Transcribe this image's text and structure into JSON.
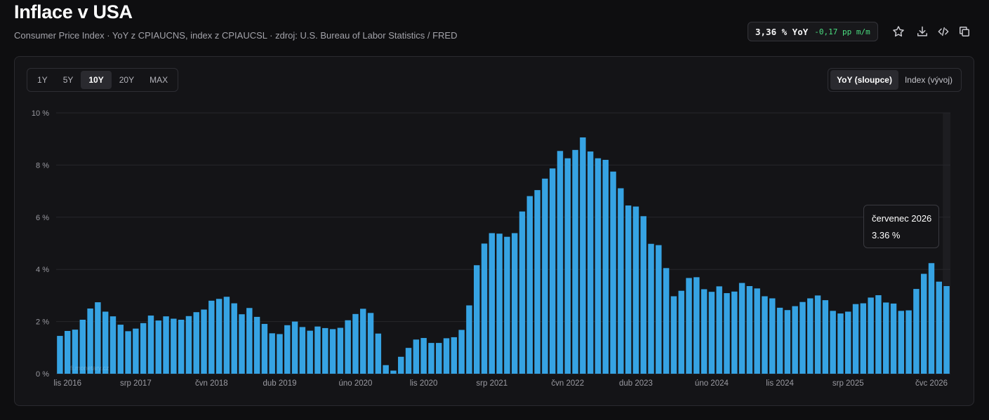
{
  "header": {
    "title": "Inflace v USA",
    "subtitle": "Consumer Price Index · YoY z CPIAUCNS, index z CPIAUCSL · zdroj: U.S. Bureau of Labor Statistics / FRED"
  },
  "stat": {
    "value": "3,36 % YoY",
    "change": "-0,17 pp m/m",
    "change_color": "#4ade80"
  },
  "toolbar": {
    "icons": [
      "star-icon",
      "download-icon",
      "code-icon",
      "copy-icon"
    ]
  },
  "range_buttons": [
    "1Y",
    "5Y",
    "10Y",
    "20Y",
    "MAX"
  ],
  "range_selected": "10Y",
  "mode_buttons": [
    "YoY (sloupce)",
    "Index (vývoj)"
  ],
  "mode_selected": "YoY (sloupce)",
  "watermark": "fi.monetary.cz",
  "tooltip": {
    "title": "červenec 2026",
    "value": "3.36 %"
  },
  "colors": {
    "bar": "#36a3e3",
    "grid": "#26262b",
    "axis_text": "#9a9aa1",
    "highlight_band": "#1d1d21"
  },
  "chart_data": {
    "type": "bar",
    "ylabel": "",
    "xlabel": "",
    "ylim": [
      0,
      10
    ],
    "y_ticks": [
      0,
      2,
      4,
      6,
      8,
      10
    ],
    "y_tick_labels": [
      "0 %",
      "2 %",
      "4 %",
      "6 %",
      "8 %",
      "10 %"
    ],
    "x_tick_labels": [
      {
        "label": "lis 2016",
        "index": 1
      },
      {
        "label": "srp 2017",
        "index": 10
      },
      {
        "label": "čvn 2018",
        "index": 20
      },
      {
        "label": "dub 2019",
        "index": 29
      },
      {
        "label": "úno 2020",
        "index": 39
      },
      {
        "label": "lis 2020",
        "index": 48
      },
      {
        "label": "srp 2021",
        "index": 57
      },
      {
        "label": "čvn 2022",
        "index": 67
      },
      {
        "label": "dub 2023",
        "index": 76
      },
      {
        "label": "úno 2024",
        "index": 86
      },
      {
        "label": "lis 2024",
        "index": 95
      },
      {
        "label": "srp 2025",
        "index": 104
      },
      {
        "label": "čvc 2026",
        "index": 115
      }
    ],
    "series": [
      {
        "values": [
          1.45,
          1.64,
          1.69,
          2.07,
          2.5,
          2.74,
          2.38,
          2.2,
          1.88,
          1.63,
          1.73,
          1.94,
          2.23,
          2.04,
          2.2,
          2.11,
          2.07,
          2.21,
          2.36,
          2.46,
          2.8,
          2.87,
          2.95,
          2.7,
          2.28,
          2.52,
          2.18,
          1.91,
          1.55,
          1.52,
          1.86,
          2.0,
          1.79,
          1.65,
          1.81,
          1.75,
          1.71,
          1.76,
          2.05,
          2.29,
          2.49,
          2.33,
          1.54,
          0.33,
          0.12,
          0.65,
          0.99,
          1.31,
          1.37,
          1.18,
          1.18,
          1.36,
          1.4,
          1.68,
          2.62,
          4.16,
          4.99,
          5.39,
          5.37,
          5.25,
          5.39,
          6.22,
          6.81,
          7.04,
          7.48,
          7.87,
          8.54,
          8.26,
          8.58,
          9.06,
          8.52,
          8.26,
          8.2,
          7.75,
          7.11,
          6.45,
          6.41,
          6.04,
          4.98,
          4.93,
          4.05,
          2.97,
          3.18,
          3.67,
          3.7,
          3.24,
          3.14,
          3.35,
          3.09,
          3.15,
          3.48,
          3.36,
          3.27,
          2.97,
          2.89,
          2.53,
          2.44,
          2.59,
          2.75,
          2.89,
          3.0,
          2.82,
          2.41,
          2.31,
          2.38,
          2.67,
          2.7,
          2.92,
          3.01,
          2.73,
          2.69,
          2.41,
          2.43,
          3.25,
          3.83,
          4.24,
          3.53,
          3.36
        ]
      }
    ]
  }
}
